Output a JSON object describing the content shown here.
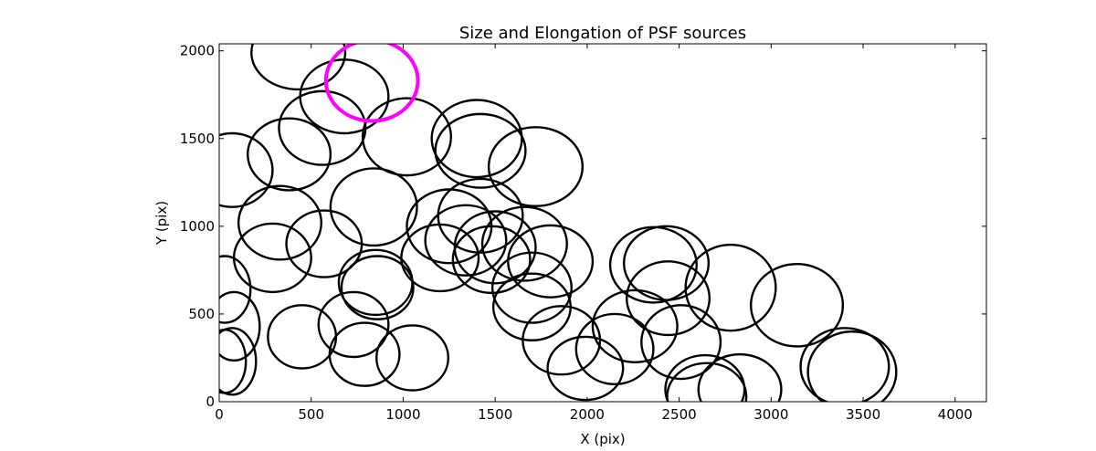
{
  "chart_data": {
    "type": "scatter",
    "title": "Size and Elongation of PSF sources",
    "xlabel": "X (pix)",
    "ylabel": "Y (pix)",
    "xlim": [
      0,
      4170
    ],
    "ylim": [
      0,
      2040
    ],
    "xticks": [
      0,
      500,
      1000,
      1500,
      2000,
      2500,
      3000,
      3500,
      4000
    ],
    "yticks": [
      0,
      500,
      1000,
      1500,
      2000
    ],
    "grid": false,
    "marker": "ellipse outline",
    "colors": {
      "default": "#000000",
      "highlight": "#ff00ff"
    },
    "ellipses": [
      {
        "x": 430,
        "y": 1990,
        "w": 510,
        "h": 420
      },
      {
        "x": 680,
        "y": 1740,
        "w": 480,
        "h": 420
      },
      {
        "x": 560,
        "y": 1560,
        "w": 470,
        "h": 420
      },
      {
        "x": 380,
        "y": 1410,
        "w": 450,
        "h": 410
      },
      {
        "x": 70,
        "y": 1320,
        "w": 440,
        "h": 420
      },
      {
        "x": 1020,
        "y": 1510,
        "w": 480,
        "h": 440
      },
      {
        "x": 1400,
        "y": 1500,
        "w": 490,
        "h": 440
      },
      {
        "x": 1420,
        "y": 1430,
        "w": 490,
        "h": 420
      },
      {
        "x": 1720,
        "y": 1340,
        "w": 510,
        "h": 450
      },
      {
        "x": 840,
        "y": 1110,
        "w": 470,
        "h": 440
      },
      {
        "x": 330,
        "y": 1020,
        "w": 450,
        "h": 420
      },
      {
        "x": 1250,
        "y": 1000,
        "w": 460,
        "h": 420
      },
      {
        "x": 1420,
        "y": 1060,
        "w": 460,
        "h": 420
      },
      {
        "x": 290,
        "y": 820,
        "w": 420,
        "h": 390
      },
      {
        "x": 570,
        "y": 900,
        "w": 410,
        "h": 380
      },
      {
        "x": 1340,
        "y": 920,
        "w": 440,
        "h": 400
      },
      {
        "x": 1500,
        "y": 880,
        "w": 440,
        "h": 410
      },
      {
        "x": 1660,
        "y": 900,
        "w": 460,
        "h": 420
      },
      {
        "x": 1800,
        "y": 800,
        "w": 460,
        "h": 410
      },
      {
        "x": 1480,
        "y": 810,
        "w": 420,
        "h": 380
      },
      {
        "x": 1200,
        "y": 820,
        "w": 420,
        "h": 380
      },
      {
        "x": 850,
        "y": 680,
        "w": 400,
        "h": 370
      },
      {
        "x": 860,
        "y": 650,
        "w": 390,
        "h": 360
      },
      {
        "x": 1700,
        "y": 650,
        "w": 430,
        "h": 400
      },
      {
        "x": 1700,
        "y": 540,
        "w": 420,
        "h": 380
      },
      {
        "x": 30,
        "y": 640,
        "w": 280,
        "h": 380
      },
      {
        "x": 80,
        "y": 430,
        "w": 280,
        "h": 390
      },
      {
        "x": 70,
        "y": 230,
        "w": 260,
        "h": 380
      },
      {
        "x": 30,
        "y": 230,
        "w": 230,
        "h": 360
      },
      {
        "x": 450,
        "y": 370,
        "w": 370,
        "h": 360
      },
      {
        "x": 730,
        "y": 440,
        "w": 380,
        "h": 370
      },
      {
        "x": 790,
        "y": 270,
        "w": 380,
        "h": 360
      },
      {
        "x": 1050,
        "y": 250,
        "w": 390,
        "h": 370
      },
      {
        "x": 1860,
        "y": 350,
        "w": 420,
        "h": 390
      },
      {
        "x": 1990,
        "y": 190,
        "w": 410,
        "h": 360
      },
      {
        "x": 2150,
        "y": 300,
        "w": 420,
        "h": 400
      },
      {
        "x": 2260,
        "y": 430,
        "w": 460,
        "h": 410
      },
      {
        "x": 2360,
        "y": 780,
        "w": 470,
        "h": 430
      },
      {
        "x": 2430,
        "y": 790,
        "w": 460,
        "h": 420
      },
      {
        "x": 2440,
        "y": 590,
        "w": 450,
        "h": 420
      },
      {
        "x": 2780,
        "y": 650,
        "w": 490,
        "h": 490
      },
      {
        "x": 3140,
        "y": 550,
        "w": 500,
        "h": 470
      },
      {
        "x": 2510,
        "y": 340,
        "w": 430,
        "h": 420
      },
      {
        "x": 2650,
        "y": 30,
        "w": 430,
        "h": 380
      },
      {
        "x": 2640,
        "y": 70,
        "w": 430,
        "h": 390
      },
      {
        "x": 2830,
        "y": 70,
        "w": 450,
        "h": 400
      },
      {
        "x": 3400,
        "y": 200,
        "w": 480,
        "h": 440
      },
      {
        "x": 3440,
        "y": 170,
        "w": 480,
        "h": 460
      },
      {
        "x": 830,
        "y": 1830,
        "w": 500,
        "h": 460,
        "highlight": true
      }
    ]
  }
}
